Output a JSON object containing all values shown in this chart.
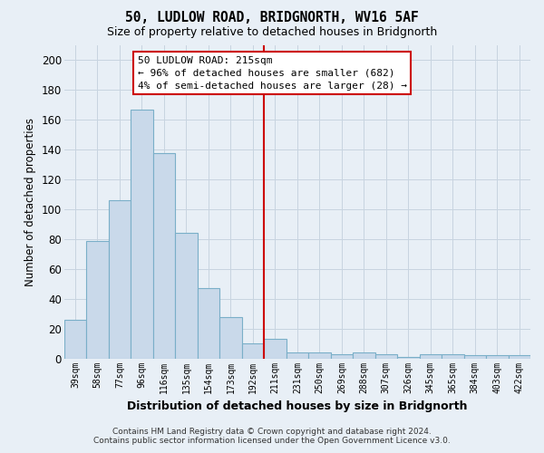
{
  "title": "50, LUDLOW ROAD, BRIDGNORTH, WV16 5AF",
  "subtitle": "Size of property relative to detached houses in Bridgnorth",
  "xlabel": "Distribution of detached houses by size in Bridgnorth",
  "ylabel": "Number of detached properties",
  "categories": [
    "39sqm",
    "58sqm",
    "77sqm",
    "96sqm",
    "116sqm",
    "135sqm",
    "154sqm",
    "173sqm",
    "192sqm",
    "211sqm",
    "231sqm",
    "250sqm",
    "269sqm",
    "288sqm",
    "307sqm",
    "326sqm",
    "345sqm",
    "365sqm",
    "384sqm",
    "403sqm",
    "422sqm"
  ],
  "values": [
    26,
    79,
    106,
    167,
    138,
    84,
    47,
    28,
    10,
    13,
    4,
    4,
    3,
    4,
    3,
    1,
    3,
    3,
    2,
    2,
    2
  ],
  "bar_color": "#c9d9ea",
  "bar_edge_color": "#7aafc8",
  "vline_x": 8.5,
  "vline_color": "#cc0000",
  "annotation_box_text": "50 LUDLOW ROAD: 215sqm\n← 96% of detached houses are smaller (682)\n4% of semi-detached houses are larger (28) →",
  "box_edge_color": "#cc0000",
  "ylim": [
    0,
    210
  ],
  "background_color": "#e8eff6",
  "grid_color": "#c8d4e0",
  "fig_bg_color": "#e8eff6",
  "footer_line1": "Contains HM Land Registry data © Crown copyright and database right 2024.",
  "footer_line2": "Contains public sector information licensed under the Open Government Licence v3.0."
}
